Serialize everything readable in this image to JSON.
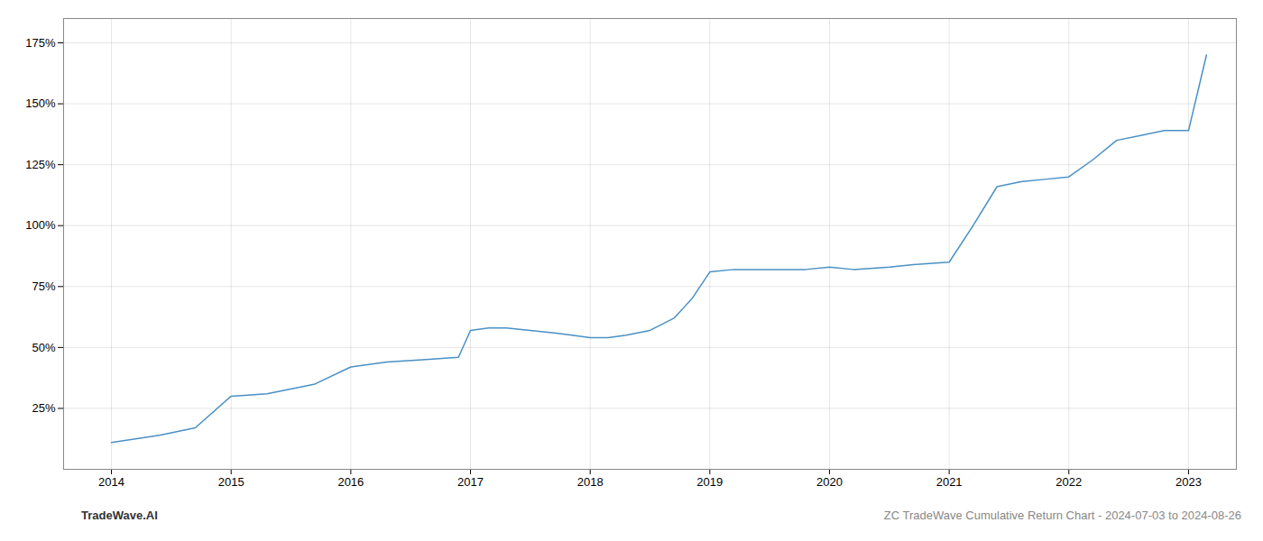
{
  "chart_data": {
    "type": "line",
    "annotations": [
      "TradeWave.AI",
      "ZC TradeWave Cumulative Return Chart - 2024-07-03 to 2024-08-26"
    ],
    "x": [
      2014.0,
      2014.4,
      2014.7,
      2015.0,
      2015.3,
      2015.7,
      2016.0,
      2016.3,
      2016.6,
      2016.9,
      2017.0,
      2017.15,
      2017.3,
      2017.5,
      2017.7,
      2017.85,
      2018.0,
      2018.15,
      2018.3,
      2018.5,
      2018.7,
      2018.85,
      2019.0,
      2019.2,
      2019.4,
      2019.6,
      2019.8,
      2020.0,
      2020.2,
      2020.5,
      2020.7,
      2021.0,
      2021.2,
      2021.4,
      2021.6,
      2021.8,
      2022.0,
      2022.2,
      2022.4,
      2022.6,
      2022.8,
      2023.0,
      2023.15
    ],
    "values": [
      11,
      14,
      17,
      30,
      31,
      35,
      42,
      44,
      45,
      46,
      57,
      58,
      58,
      57,
      56,
      55,
      54,
      54,
      55,
      57,
      62,
      70,
      81,
      82,
      82,
      82,
      82,
      83,
      82,
      83,
      84,
      85,
      100,
      116,
      118,
      119,
      120,
      127,
      135,
      137,
      139,
      139,
      170
    ],
    "color": "#4a90c4",
    "xlim": [
      2013.6,
      2023.4
    ],
    "ylim": [
      0,
      185
    ],
    "xticks": [
      2014,
      2015,
      2016,
      2017,
      2018,
      2019,
      2020,
      2021,
      2022,
      2023
    ],
    "yticks": [
      {
        "value": 25,
        "label": "25%"
      },
      {
        "value": 50,
        "label": "50%"
      },
      {
        "value": 75,
        "label": "75%"
      },
      {
        "value": 100,
        "label": "100%"
      },
      {
        "value": 125,
        "label": "125%"
      },
      {
        "value": 150,
        "label": "150%"
      },
      {
        "value": 175,
        "label": "175%"
      }
    ],
    "grid": true
  }
}
